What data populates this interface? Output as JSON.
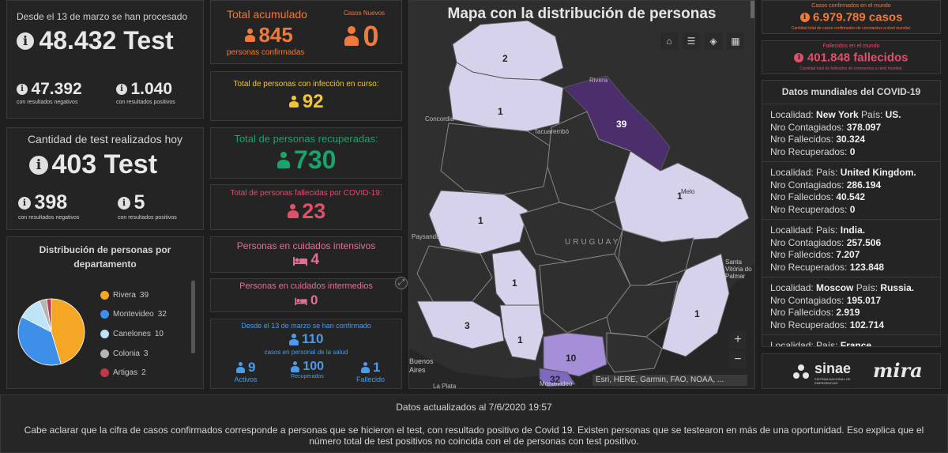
{
  "tests": {
    "header": "Desde el 13 de marzo se han procesado",
    "total": "48.432 Test",
    "negatives_value": "47.392",
    "negatives_label": "con resultados negativos",
    "positives_value": "1.040",
    "positives_label": "con resultados positivos"
  },
  "today": {
    "header": "Cantidad de test realizados hoy",
    "total": "403 Test",
    "negatives_value": "398",
    "negatives_label": "con resultados negativos",
    "positives_value": "5",
    "positives_label": "con resultados positivos"
  },
  "distribution": {
    "title": "Distribución de personas por departamento",
    "items": [
      {
        "name": "Rivera",
        "value": "39",
        "color": "#f5a623"
      },
      {
        "name": "Montevideo",
        "value": "32",
        "color": "#3d8fe8"
      },
      {
        "name": "Canelones",
        "value": "10",
        "color": "#bfe3f7"
      },
      {
        "name": "Colonia",
        "value": "3",
        "color": "#b5b5b5"
      },
      {
        "name": "Artigas",
        "value": "2",
        "color": "#c0394b"
      }
    ]
  },
  "accumulated": {
    "title": "Total acumulado",
    "value": "845",
    "label": "personas confirmadas",
    "new_title": "Casos Nuevos",
    "new_value": "0",
    "color": "#f07a3c"
  },
  "active": {
    "title": "Total de personas con infección en curso:",
    "value": "92",
    "color": "#f0c53c"
  },
  "recovered": {
    "title": "Total de personas recuperadas:",
    "value": "730",
    "color": "#1aa36b"
  },
  "deceased": {
    "title": "Total de personas fallecidas por COVID-19:",
    "value": "23",
    "color": "#e0506a"
  },
  "icu": {
    "title": "Personas en cuidados intensivos",
    "value": "4",
    "color": "#e0709a"
  },
  "intermediate": {
    "title": "Personas en cuidados intermedios",
    "value": "0",
    "color": "#e0709a"
  },
  "health": {
    "header": "Desde el 13 de marzo se han confirmado",
    "total": "110",
    "sub": "casos en personal de la salud",
    "activos_value": "9",
    "activos_label": "Activos",
    "recuperados_value": "100",
    "recuperados_label": "Recuperados",
    "fallecido_value": "1",
    "fallecido_label": "Fallecido",
    "color": "#4d9be6"
  },
  "map": {
    "title": "Mapa con la distribución de personas",
    "attribution": "Esri, HERE, Garmin, FAO, NOAA, ...",
    "country_label": "URUGUAY",
    "places": [
      "Rivera",
      "Concordia",
      "Tacuarembó",
      "Melo",
      "Paysandú",
      "Santa Vitória do Palmar",
      "Buenos Aires",
      "La Plata",
      "Montevideo"
    ],
    "counts": [
      "2",
      "1",
      "39",
      "1",
      "1",
      "1",
      "1",
      "3",
      "1",
      "10",
      "32"
    ],
    "zoom_in": "+",
    "zoom_out": "−"
  },
  "world": {
    "confirmed_title": "Casos confirmados en el mundo",
    "confirmed_value": "6.979.789 casos",
    "confirmed_note": "Cantidad total de casos confirmados de coronavirus a nivel mundial.",
    "deaths_title": "Fallecidos en el mundo",
    "deaths_value": "401.848 fallecidos",
    "deaths_note": "Cantidad total de fallecidos de coronavirus a nivel mundial.",
    "list_title": "Datos mundiales del COVID-19",
    "labels": {
      "locality": "Localidad:",
      "country": "País:",
      "confirmed": "Nro Contagiados:",
      "deaths": "Nro Fallecidos:",
      "recovered": "Nro Recuperados:"
    },
    "entries": [
      {
        "locality": "New York",
        "country": "US.",
        "confirmed": "378.097",
        "deaths": "30.324",
        "recovered": "0"
      },
      {
        "locality": "",
        "country": "United Kingdom.",
        "confirmed": "286.194",
        "deaths": "40.542",
        "recovered": "0"
      },
      {
        "locality": "",
        "country": "India.",
        "confirmed": "257.506",
        "deaths": "7.207",
        "recovered": "123.848"
      },
      {
        "locality": "Moscow",
        "country": "Russia.",
        "confirmed": "195.017",
        "deaths": "2.919",
        "recovered": "102.714"
      },
      {
        "locality": "",
        "country": "France.",
        "confirmed": "187.360",
        "deaths": "",
        "recovered": ""
      }
    ]
  },
  "logos": {
    "sinae": "sinae",
    "sinae_sub": "SISTEMA NACIONAL DE EMERGENCIAS",
    "mira": "mira"
  },
  "footer": {
    "updated": "Datos actualizados al 7/6/2020 19:57",
    "note": "Cabe aclarar que la cifra de casos confirmados corresponde a personas que se hicieron el test, con resultado positivo de Covid 19. Existen personas que se testearon en más de una oportunidad. Eso explica que el número total de test positivos no coincida con el de personas con test positivo."
  }
}
